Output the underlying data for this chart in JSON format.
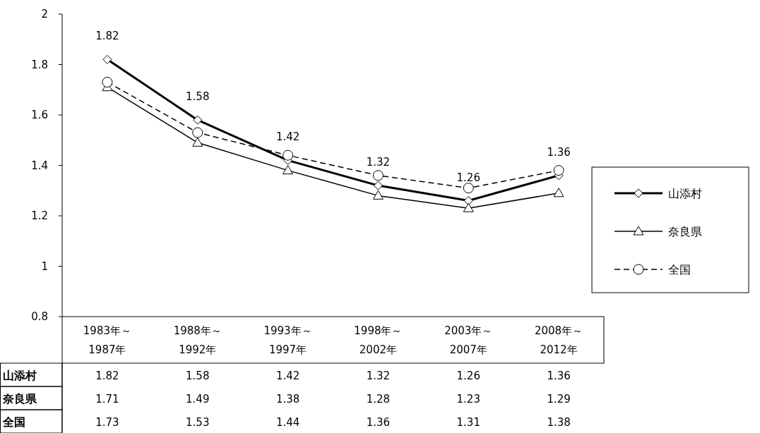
{
  "chart_data": {
    "type": "line",
    "categories": [
      "1983年～\n1987年",
      "1988年～\n1992年",
      "1993年～\n1997年",
      "1998年～\n2002年",
      "2003年～\n2007年",
      "2008年～\n2012年"
    ],
    "series": [
      {
        "name": "山添村",
        "color": "#000000",
        "marker": "diamond",
        "line_style": "solid",
        "values": [
          1.82,
          1.58,
          1.42,
          1.32,
          1.26,
          1.36
        ]
      },
      {
        "name": "奈良県",
        "color": "#000000",
        "marker": "triangle",
        "line_style": "solid",
        "values": [
          1.71,
          1.49,
          1.38,
          1.28,
          1.23,
          1.29
        ]
      },
      {
        "name": "全国",
        "color": "#000000",
        "marker": "circle",
        "line_style": "dashed",
        "values": [
          1.73,
          1.53,
          1.44,
          1.36,
          1.31,
          1.38
        ]
      }
    ],
    "annotations": [
      {
        "text": "1.82",
        "x": "1983年～\n1987年",
        "y": 1.82
      },
      {
        "text": "1.58",
        "x": "1988年～\n1992年",
        "y": 1.58
      },
      {
        "text": "1.42",
        "x": "1993年～\n1997年",
        "y": 1.42
      },
      {
        "text": "1.32",
        "x": "1998年～\n2002年",
        "y": 1.32
      },
      {
        "text": "1.26",
        "x": "2003年～\n2007年",
        "y": 1.26
      },
      {
        "text": "1.36",
        "x": "2008年～\n2012年",
        "y": 1.36
      }
    ],
    "ylim": [
      0.8,
      2
    ],
    "yticks": [
      0.8,
      1,
      1.2,
      1.4,
      1.6,
      1.8,
      2
    ],
    "legend": "right",
    "data_labels": true,
    "grid": false
  }
}
